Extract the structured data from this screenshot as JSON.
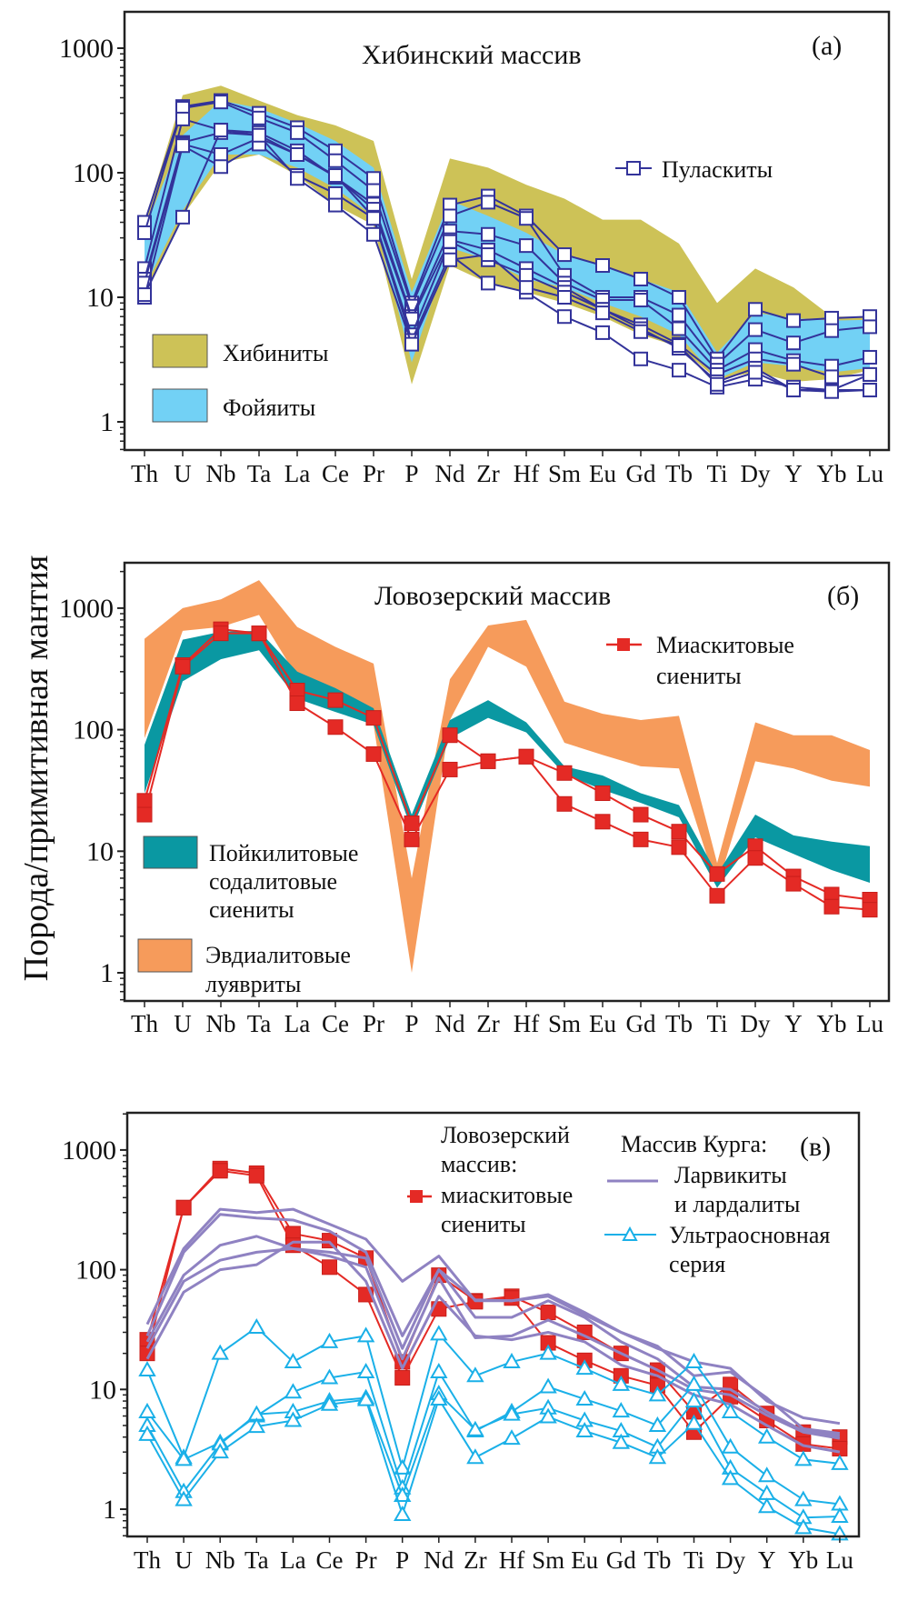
{
  "y_axis_label": "Порода/примитивная мантия",
  "chart_data": [
    {
      "type": "line",
      "panel_label": "(а)",
      "title": "Хибинский массив",
      "x": [
        "Th",
        "U",
        "Nb",
        "Ta",
        "La",
        "Ce",
        "Pr",
        "P",
        "Nd",
        "Zr",
        "Hf",
        "Sm",
        "Eu",
        "Gd",
        "Tb",
        "Ti",
        "Dy",
        "Y",
        "Yb",
        "Lu"
      ],
      "yscale": "log",
      "ylim": [
        0.6,
        2000
      ],
      "yticks": [
        "1",
        "10",
        "100",
        "1000"
      ],
      "bands": [
        {
          "name": "Хибиниты",
          "color": "#cdc257",
          "upper": [
            40,
            420,
            500,
            380,
            290,
            240,
            180,
            14,
            130,
            110,
            80,
            62,
            42,
            42,
            27,
            9,
            17,
            12,
            7,
            7
          ],
          "lower": [
            10,
            45,
            120,
            140,
            95,
            55,
            38,
            2.0,
            18,
            13,
            11,
            9,
            7,
            5,
            4,
            2.2,
            2.5,
            2.1,
            2.2,
            2.6
          ]
        },
        {
          "name": "Фойяиты",
          "color": "#72d1f5",
          "upper": [
            35,
            200,
            380,
            330,
            250,
            180,
            110,
            11,
            60,
            45,
            33,
            22,
            18,
            14,
            11,
            3.6,
            7.5,
            6.8,
            6.5,
            6.6
          ],
          "lower": [
            12,
            50,
            140,
            140,
            110,
            75,
            45,
            3,
            25,
            20,
            14,
            12,
            9,
            7,
            5,
            2.2,
            3,
            2.8,
            2.5,
            2.7
          ]
        }
      ],
      "series": [
        {
          "name": "Пуласкиты",
          "color": "#33339a",
          "marker": "open-square",
          "values": [
            [
              40,
              340,
              380,
              300,
              230,
              150,
              90,
              9,
              55,
              65,
              45,
              22,
              18,
              14,
              10,
              3.2,
              8,
              6.5,
              6.8,
              7
            ]
          ]
        },
        {
          "name": "Пуласкиты-2",
          "color": "#33339a",
          "marker": "open-square",
          "values": [
            [
              33,
              330,
              370,
              275,
              210,
              125,
              72,
              8.5,
              45,
              58,
              43,
              15,
              10,
              10,
              7.2,
              2.9,
              5.5,
              4.3,
              5.4,
              5.8
            ]
          ]
        },
        {
          "name": "Пуласкиты-3",
          "color": "#33339a",
          "marker": "open-square",
          "values": [
            [
              17,
              270,
              220,
              210,
              150,
              92,
              56,
              7,
              34,
              32,
              26,
              13,
              9.5,
              9.5,
              5.6,
              2.6,
              3.8,
              3.1,
              2.8,
              3.3
            ]
          ]
        },
        {
          "name": "Пуласкиты-4",
          "color": "#33339a",
          "marker": "open-square",
          "values": [
            [
              14,
              175,
              210,
              200,
              140,
              93,
              51,
              6.7,
              29,
              24,
              17,
              12,
              8,
              6,
              4.2,
              2.4,
              3.2,
              2.9,
              2.3,
              2.4
            ]
          ]
        },
        {
          "name": "Пуласкиты-5",
          "color": "#33339a",
          "marker": "open-square",
          "values": [
            [
              13,
              170,
              140,
              190,
              140,
              95,
              44,
              5,
              28,
              20,
              15,
              11,
              8,
              5.6,
              3.9,
              2.1,
              2.7,
              1.8,
              1.8,
              2.4
            ]
          ]
        },
        {
          "name": "Пуласкиты-6",
          "color": "#33339a",
          "marker": "open-square",
          "values": [
            [
              10,
              165,
              112,
              170,
              95,
              68,
              43,
              4.5,
              22,
              13,
              11,
              7,
              5.2,
              3.2,
              2.6,
              1.9,
              2.2,
              1.9,
              1.8,
              1.8
            ]
          ]
        },
        {
          "name": "Пуласкиты-7",
          "color": "#33339a",
          "marker": "open-square",
          "values": [
            [
              10.5,
              44,
              220,
              200,
              90,
              55,
              32,
              4.2,
              20,
              22,
              12,
              10,
              7.5,
              5.3,
              4.1,
              2.0,
              2.5,
              1.8,
              1.75,
              1.8
            ]
          ]
        }
      ],
      "legend": [
        {
          "label": "Пуласкиты",
          "kind": "line-open-square",
          "color": "#33339a"
        },
        {
          "label": "Хибиниты",
          "kind": "band",
          "color": "#cdc257"
        },
        {
          "label": "Фойяиты",
          "kind": "band",
          "color": "#72d1f5"
        }
      ]
    },
    {
      "type": "line",
      "panel_label": "(б)",
      "title": "Ловозерский массив",
      "x": [
        "Th",
        "U",
        "Nb",
        "Ta",
        "La",
        "Ce",
        "Pr",
        "P",
        "Nd",
        "Zr",
        "Hf",
        "Sm",
        "Eu",
        "Gd",
        "Tb",
        "Ti",
        "Dy",
        "Y",
        "Yb",
        "Lu"
      ],
      "yscale": "log",
      "ylim": [
        0.6,
        2000
      ],
      "yticks": [
        "1",
        "10",
        "100",
        "1000"
      ],
      "bands": [
        {
          "name": "Эвдиалитовые луявриты",
          "color": "#f69b5b",
          "upper": [
            560,
            1000,
            1180,
            1700,
            700,
            480,
            350,
            6,
            260,
            720,
            800,
            170,
            135,
            120,
            130,
            8,
            115,
            90,
            90,
            68
          ],
          "lower": [
            85,
            650,
            700,
            880,
            270,
            160,
            110,
            1,
            120,
            480,
            330,
            78,
            62,
            50,
            48,
            5,
            55,
            48,
            38,
            34
          ]
        },
        {
          "name": "Пойкилитовые содалитовые сиениты",
          "color": "#0a98a2",
          "upper": [
            75,
            550,
            640,
            650,
            300,
            220,
            150,
            20,
            120,
            175,
            115,
            50,
            42,
            30,
            24,
            6.5,
            20,
            13.5,
            12,
            11
          ],
          "lower": [
            30,
            250,
            380,
            450,
            180,
            140,
            110,
            15,
            85,
            125,
            95,
            43,
            32,
            25,
            19,
            5,
            13,
            9.5,
            7,
            5.5
          ]
        }
      ],
      "series": [
        {
          "name": "Миаскитовые сиениты",
          "color": "#e42a25",
          "marker": "filled-square",
          "values": [
            [
              26,
              340,
              670,
              620,
              210,
              175,
              125,
              17,
              90,
              55,
              60,
              44,
              30,
              20,
              14.5,
              6.5,
              11,
              6.2,
              4.4,
              4.0
            ]
          ]
        },
        {
          "name": "Миаскитовые сиениты-2",
          "color": "#e42a25",
          "marker": "filled-square",
          "values": [
            [
              20,
              330,
              620,
              620,
              165,
              105,
              63,
              12.5,
              47,
              55,
              60,
              24.5,
              17.5,
              12.5,
              10.8,
              4.3,
              8.8,
              5.4,
              3.5,
              3.3
            ]
          ]
        }
      ],
      "legend": [
        {
          "label": "Миаскитовые сиениты",
          "kind": "line-filled-square",
          "color": "#e42a25"
        },
        {
          "label": "Пойкилитовые содалитовые сиениты",
          "kind": "band",
          "color": "#0a98a2"
        },
        {
          "label": "Эвдиалитовые луявриты",
          "kind": "band",
          "color": "#f69b5b"
        }
      ]
    },
    {
      "type": "line",
      "panel_label": "(в)",
      "title": "",
      "x": [
        "Th",
        "U",
        "Nb",
        "Ta",
        "La",
        "Ce",
        "Pr",
        "P",
        "Nd",
        "Zr",
        "Hf",
        "Sm",
        "Eu",
        "Gd",
        "Tb",
        "Ti",
        "Dy",
        "Y",
        "Yb",
        "Lu"
      ],
      "yscale": "log",
      "ylim": [
        0.6,
        2000
      ],
      "yticks": [
        "1",
        "10",
        "100",
        "1000"
      ],
      "series": [
        {
          "name": "Ловозерский массив: миаскитовые сиениты",
          "group": "lovozero",
          "color": "#e42a25",
          "marker": "filled-square",
          "values": [
            [
              26,
              330,
              700,
              640,
              200,
              175,
              125,
              17,
              90,
              55,
              60,
              44,
              30,
              20,
              14.5,
              6.5,
              11,
              6.3,
              4.4,
              4.0
            ]
          ]
        },
        {
          "name": "Ловозерский массив: миаскитовые сиениты-2",
          "group": "lovozero",
          "color": "#e42a25",
          "marker": "filled-square",
          "values": [
            [
              20,
              330,
              670,
              610,
              160,
              105,
              62,
              12.5,
              47,
              54,
              58,
              24.5,
              17.5,
              13,
              10.8,
              4.4,
              8.7,
              5.5,
              3.5,
              3.2
            ]
          ]
        },
        {
          "name": "Ларвикиты и лардалиты-1",
          "group": "kurga-larv",
          "color": "#8f82c2",
          "marker": "none",
          "values": [
            [
              35,
              150,
              320,
              300,
              320,
              240,
              180,
              80,
              130,
              55,
              55,
              62,
              44,
              30,
              22,
              17,
              15,
              8,
              5.8,
              5.2
            ]
          ]
        },
        {
          "name": "Ларвикиты и лардалиты-2",
          "group": "kurga-larv",
          "color": "#8f82c2",
          "marker": "none",
          "values": [
            [
              28,
              140,
              290,
              270,
              260,
              210,
              140,
              28,
              100,
              56,
              55,
              60,
              42,
              30,
              23,
              13,
              14,
              8.5,
              4.7,
              4.3
            ]
          ]
        },
        {
          "name": "Ларвикиты и лардалиты-3",
          "group": "kurga-larv",
          "color": "#8f82c2",
          "marker": "none",
          "values": [
            [
              25,
              90,
              160,
              190,
              150,
              140,
              125,
              22,
              100,
              40,
              40,
              55,
              40,
              25,
              18,
              10.5,
              10,
              6.5,
              4.5,
              4.1
            ]
          ]
        },
        {
          "name": "Ларвикиты и лардалиты-4",
          "group": "kurga-larv",
          "color": "#8f82c2",
          "marker": "none",
          "values": [
            [
              22,
              80,
              120,
              140,
              150,
              130,
              105,
              18,
              85,
              27,
              28,
              38,
              28,
              20,
              14.5,
              10,
              9,
              6.1,
              4.4,
              3.9
            ]
          ]
        },
        {
          "name": "Ларвикиты и лардалиты-5",
          "group": "kurga-larv",
          "color": "#8f82c2",
          "marker": "none",
          "values": [
            [
              18,
              65,
              100,
              110,
              170,
              170,
              80,
              15,
              60,
              28,
              26,
              30,
              25,
              16,
              13,
              9,
              7.5,
              5,
              3.4,
              3.0
            ]
          ]
        },
        {
          "name": "Ультраосновная серия-1",
          "group": "kurga-ultra",
          "color": "#1ab0e8",
          "marker": "open-triangle",
          "values": [
            [
              14.5,
              2.7,
              20,
              33,
              17,
              25,
              28,
              2.2,
              29,
              13,
              17,
              20,
              15,
              11,
              9.0,
              17,
              6.5,
              4.0,
              2.6,
              2.4
            ]
          ]
        },
        {
          "name": "Ультраосновная серия-2",
          "group": "kurga-ultra",
          "color": "#1ab0e8",
          "marker": "open-triangle",
          "values": [
            [
              6.5,
              2.6,
              3.6,
              6,
              9.5,
              12.5,
              14,
              1.5,
              14,
              4.5,
              6.5,
              10.5,
              8.3,
              6.6,
              5.0,
              11,
              3.3,
              1.9,
              1.2,
              1.1
            ]
          ]
        },
        {
          "name": "Ультраосновная серия-3",
          "group": "kurga-ultra",
          "color": "#1ab0e8",
          "marker": "open-triangle",
          "values": [
            [
              5,
              1.4,
              3.5,
              6.2,
              6.5,
              8,
              8.5,
              1.3,
              9.2,
              4.6,
              6.2,
              7,
              5.5,
              4.5,
              3.3,
              8,
              2.2,
              1.35,
              0.85,
              0.87
            ]
          ]
        },
        {
          "name": "Ультраосновная серия-4",
          "group": "kurga-ultra",
          "color": "#1ab0e8",
          "marker": "open-triangle",
          "values": [
            [
              4.2,
              1.2,
              3.0,
              4.9,
              5.5,
              7.5,
              8.2,
              0.9,
              8.3,
              2.7,
              3.9,
              5.9,
              4.5,
              3.6,
              2.7,
              5.2,
              1.8,
              1.05,
              0.7,
              0.62
            ]
          ]
        }
      ],
      "legend": [
        {
          "label": "Ловозерский массив:",
          "kind": "header"
        },
        {
          "label": "миаскитовые сиениты",
          "kind": "line-filled-square",
          "color": "#e42a25"
        },
        {
          "label": "Массив Курга:",
          "kind": "header"
        },
        {
          "label": "Ларвикиты и лардалиты",
          "kind": "line",
          "color": "#8f82c2"
        },
        {
          "label": "Ультраосновная серия",
          "kind": "line-open-triangle",
          "color": "#1ab0e8"
        }
      ]
    }
  ],
  "text": {
    "a_title": "Хибинский массив",
    "a_panel": "(а)",
    "a_leg_pul": "Пуласкиты",
    "a_leg_khib": "Хибиниты",
    "a_leg_foy": "Фойяиты",
    "b_title": "Ловозерский массив",
    "b_panel": "(б)",
    "b_leg_mias_1": "Миаскитовые",
    "b_leg_mias_2": "сиениты",
    "b_leg_poik_1": "Пойкилитовые",
    "b_leg_poik_2": "содалитовые",
    "b_leg_poik_3": "сиениты",
    "b_leg_evd_1": "Эвдиалитовые",
    "b_leg_evd_2": "луявриты",
    "c_panel": "(в)",
    "c_leg_lov_1": "Ловозерский",
    "c_leg_lov_2": "массив:",
    "c_leg_lov_3": "миаскитовые",
    "c_leg_lov_4": "сиениты",
    "c_leg_kurga": "Массив Курга:",
    "c_leg_larv_1": "Ларвикиты",
    "c_leg_larv_2": "и лардалиты",
    "c_leg_ultra_1": "Ультраосновная",
    "c_leg_ultra_2": "серия"
  }
}
